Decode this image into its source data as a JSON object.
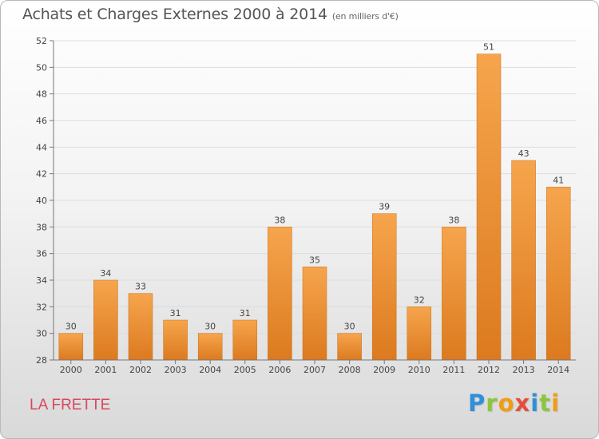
{
  "header": {
    "title": "Achats et Charges Externes 2000 à 2014",
    "unit": "(en milliers d'€)"
  },
  "footer": {
    "place": "LA FRETTE",
    "logo": [
      "P",
      "r",
      "o",
      "x",
      "i",
      "t",
      "i"
    ],
    "logo_colors": [
      "#2f8fd8",
      "#8cc63f",
      "#f39c12",
      "#e74c3c",
      "#2f8fd8",
      "#8cc63f",
      "#f39c12"
    ]
  },
  "colors": {
    "bar_light": "#f6a54d",
    "bar_dark": "#dc7a1f",
    "grid": "#dddddd"
  },
  "chart_data": {
    "type": "bar",
    "title": "Achats et Charges Externes 2000 à 2014",
    "subtitle": "(en milliers d'€)",
    "xlabel": "",
    "ylabel": "",
    "categories": [
      "2000",
      "2001",
      "2002",
      "2003",
      "2004",
      "2005",
      "2006",
      "2007",
      "2008",
      "2009",
      "2010",
      "2011",
      "2012",
      "2013",
      "2014"
    ],
    "values": [
      30,
      34,
      33,
      31,
      30,
      31,
      38,
      35,
      30,
      39,
      32,
      38,
      51,
      43,
      41
    ],
    "ylim": [
      28,
      52
    ],
    "yticks": [
      28,
      30,
      32,
      34,
      36,
      38,
      40,
      42,
      44,
      46,
      48,
      50,
      52
    ],
    "grid": true,
    "legend": "none"
  }
}
